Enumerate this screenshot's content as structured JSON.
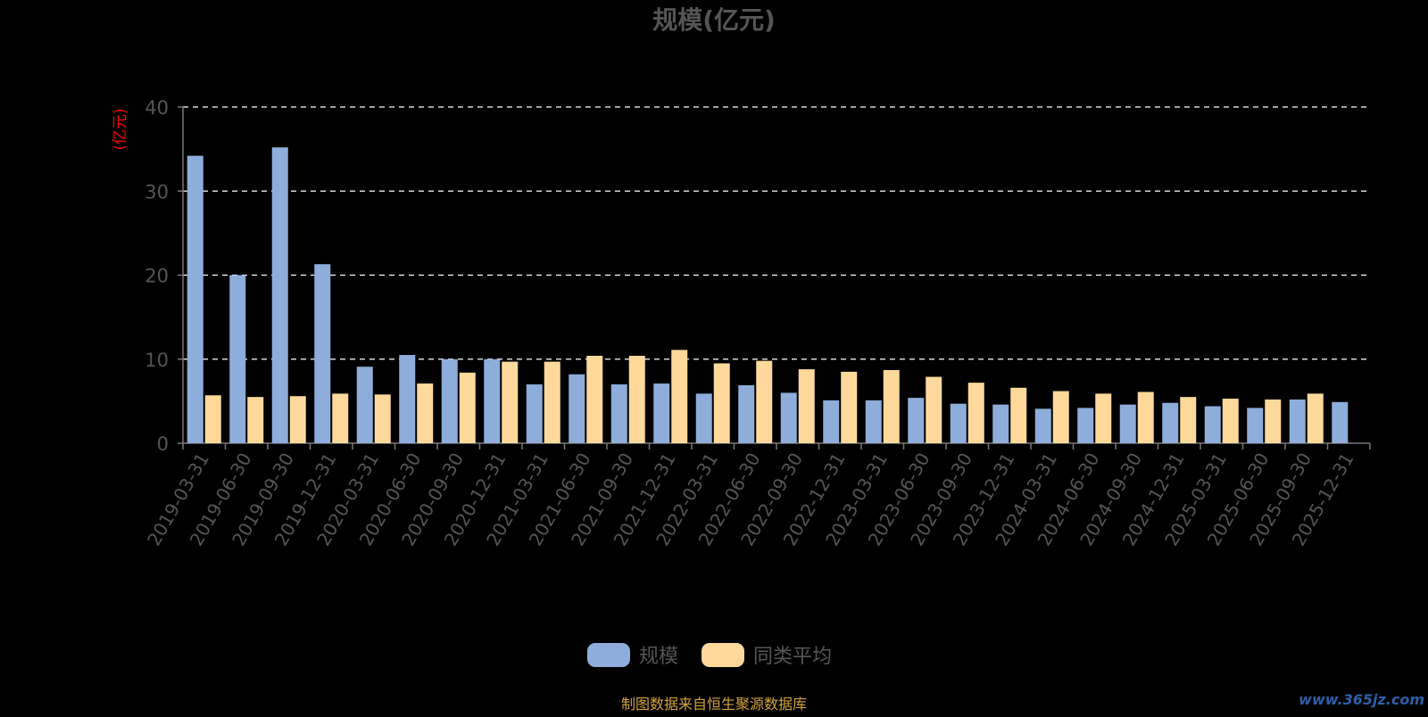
{
  "chart_data": {
    "type": "bar",
    "title": "规模(亿元)",
    "ylabel": "(亿元)",
    "xlabel": "",
    "ylim": [
      0,
      40
    ],
    "yticks": [
      0,
      10,
      20,
      30,
      40
    ],
    "grid": true,
    "legend_position": "bottom",
    "categories": [
      "2019-03-31",
      "2019-06-30",
      "2019-09-30",
      "2019-12-31",
      "2020-03-31",
      "2020-06-30",
      "2020-09-30",
      "2020-12-31",
      "2021-03-31",
      "2021-06-30",
      "2021-09-30",
      "2021-12-31",
      "2022-03-31",
      "2022-06-30",
      "2022-09-30",
      "2022-12-31",
      "2023-03-31",
      "2023-06-30",
      "2023-09-30",
      "2023-12-31",
      "2024-03-31",
      "2024-06-30",
      "2024-09-30",
      "2024-12-31",
      "2025-03-31",
      "2025-06-30",
      "2025-09-30",
      "2025-12-31"
    ],
    "series": [
      {
        "name": "规模",
        "color": "#8eadda",
        "values": [
          34.2,
          20.0,
          35.2,
          21.3,
          9.1,
          10.5,
          10.0,
          10.0,
          7.0,
          8.2,
          7.0,
          7.1,
          5.9,
          6.9,
          6.0,
          5.1,
          5.1,
          5.4,
          4.7,
          4.6,
          4.1,
          4.2,
          4.6,
          4.8,
          4.4,
          4.2,
          5.2,
          4.9
        ]
      },
      {
        "name": "同类平均",
        "color": "#fed99b",
        "values": [
          5.7,
          5.5,
          5.6,
          5.9,
          5.8,
          7.1,
          8.4,
          9.7,
          9.7,
          10.4,
          10.4,
          11.1,
          9.5,
          9.8,
          8.8,
          8.5,
          8.7,
          7.9,
          7.2,
          6.6,
          6.2,
          5.9,
          6.1,
          5.5,
          5.3,
          5.2,
          5.9,
          null
        ]
      }
    ]
  },
  "source_text": "制图数据来自恒生聚源数据库",
  "watermark": "www.365jz.com",
  "colors": {
    "background": "#000000",
    "axis": "#777777",
    "grid": "#ffffff",
    "tick_text": "#555555",
    "title_text": "#555555",
    "ylabel_text": "#ff0000",
    "source_text": "#d4a33a",
    "watermark_text": "#2f5fa8"
  }
}
